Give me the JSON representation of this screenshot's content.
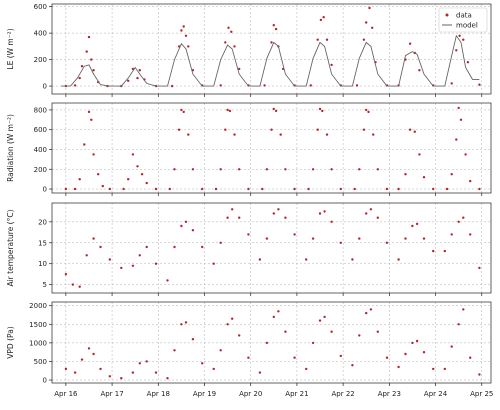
{
  "chart_data": [
    {
      "type": "scatter",
      "panel": "le",
      "ylabel": "LE (W m⁻²)",
      "ylim": [
        -60,
        620
      ],
      "yticks": [
        0,
        200,
        400,
        600
      ],
      "grid": true,
      "legend": {
        "placement": "top-right",
        "entries": [
          "data",
          "model"
        ]
      },
      "series": [
        {
          "name": "data",
          "style": "points",
          "color": "#b2262a",
          "x_days": [
            16.0,
            16.2,
            16.3,
            16.35,
            16.45,
            16.5,
            16.55,
            16.6,
            16.7,
            16.9,
            17.2,
            17.35,
            17.45,
            17.55,
            17.6,
            17.7,
            17.95,
            18.3,
            18.45,
            18.5,
            18.55,
            18.6,
            18.65,
            18.75,
            18.95,
            19.35,
            19.45,
            19.52,
            19.58,
            19.65,
            19.75,
            19.95,
            20.3,
            20.45,
            20.5,
            20.55,
            20.6,
            20.7,
            20.95,
            21.3,
            21.45,
            21.52,
            21.58,
            21.65,
            21.75,
            21.95,
            22.3,
            22.45,
            22.5,
            22.57,
            22.63,
            22.7,
            22.95,
            23.2,
            23.35,
            23.45,
            23.55,
            23.65,
            23.95,
            24.35,
            24.45,
            24.52,
            24.6,
            24.7,
            24.95
          ],
          "y": [
            0,
            5,
            60,
            150,
            260,
            370,
            200,
            120,
            30,
            0,
            0,
            40,
            130,
            60,
            120,
            50,
            0,
            0,
            300,
            420,
            450,
            380,
            300,
            120,
            5,
            5,
            330,
            440,
            410,
            300,
            130,
            5,
            5,
            330,
            460,
            430,
            300,
            130,
            5,
            5,
            350,
            500,
            520,
            350,
            160,
            5,
            5,
            350,
            480,
            590,
            440,
            180,
            5,
            5,
            200,
            320,
            250,
            120,
            5,
            20,
            270,
            380,
            350,
            180,
            10
          ]
        },
        {
          "name": "model",
          "style": "line",
          "color": "#666666",
          "x_days": [
            15.9,
            16.1,
            16.25,
            16.4,
            16.5,
            16.6,
            16.75,
            16.95,
            17.2,
            17.35,
            17.5,
            17.6,
            17.75,
            17.95,
            18.2,
            18.35,
            18.5,
            18.6,
            18.75,
            18.95,
            19.2,
            19.35,
            19.5,
            19.6,
            19.75,
            19.95,
            20.2,
            20.35,
            20.5,
            20.6,
            20.75,
            20.95,
            21.2,
            21.35,
            21.5,
            21.6,
            21.75,
            21.95,
            22.2,
            22.35,
            22.5,
            22.6,
            22.75,
            22.95,
            23.2,
            23.35,
            23.5,
            23.6,
            23.75,
            23.95,
            24.2,
            24.35,
            24.45,
            24.55,
            24.65,
            24.8,
            24.95
          ],
          "y": [
            0,
            0,
            60,
            150,
            160,
            90,
            10,
            0,
            0,
            60,
            140,
            90,
            20,
            0,
            0,
            200,
            320,
            280,
            90,
            0,
            0,
            200,
            310,
            280,
            90,
            0,
            0,
            210,
            330,
            300,
            90,
            0,
            0,
            210,
            330,
            300,
            90,
            0,
            0,
            210,
            330,
            300,
            90,
            0,
            0,
            230,
            260,
            240,
            90,
            0,
            0,
            230,
            380,
            330,
            140,
            50,
            50
          ]
        }
      ]
    },
    {
      "type": "scatter",
      "panel": "radiation",
      "ylabel": "Radiation (W m⁻²)",
      "ylim": [
        -40,
        870
      ],
      "yticks": [
        0,
        200,
        400,
        600,
        800
      ],
      "grid": true,
      "series": [
        {
          "name": "",
          "style": "points",
          "color": "#b2262a",
          "x_days": [
            16.0,
            16.2,
            16.3,
            16.4,
            16.5,
            16.55,
            16.6,
            16.7,
            16.8,
            16.95,
            17.25,
            17.35,
            17.45,
            17.55,
            17.65,
            17.75,
            17.95,
            18.25,
            18.35,
            18.45,
            18.5,
            18.55,
            18.65,
            18.75,
            18.95,
            19.25,
            19.35,
            19.45,
            19.5,
            19.55,
            19.65,
            19.75,
            19.95,
            20.25,
            20.35,
            20.45,
            20.5,
            20.55,
            20.65,
            20.75,
            20.95,
            21.25,
            21.35,
            21.45,
            21.5,
            21.55,
            21.65,
            21.75,
            21.95,
            22.25,
            22.35,
            22.45,
            22.5,
            22.55,
            22.65,
            22.75,
            22.95,
            23.2,
            23.35,
            23.45,
            23.55,
            23.65,
            23.75,
            23.95,
            24.25,
            24.35,
            24.45,
            24.5,
            24.55,
            24.65,
            24.75,
            24.95
          ],
          "y": [
            0,
            0,
            100,
            450,
            780,
            700,
            350,
            150,
            30,
            0,
            0,
            100,
            350,
            230,
            150,
            60,
            0,
            0,
            200,
            600,
            800,
            780,
            550,
            200,
            0,
            0,
            200,
            600,
            800,
            790,
            550,
            200,
            0,
            0,
            200,
            600,
            810,
            790,
            550,
            200,
            0,
            0,
            200,
            600,
            810,
            790,
            550,
            200,
            0,
            0,
            200,
            600,
            800,
            780,
            550,
            200,
            0,
            0,
            150,
            600,
            580,
            350,
            120,
            0,
            0,
            150,
            500,
            820,
            700,
            350,
            80,
            0
          ]
        }
      ]
    },
    {
      "type": "scatter",
      "panel": "air_temperature",
      "ylabel": "Air temperature (°C)",
      "ylim": [
        3,
        24.5
      ],
      "yticks": [
        5,
        10,
        15,
        20
      ],
      "grid": true,
      "series": [
        {
          "name": "",
          "style": "points",
          "color": "#b2262a",
          "x_days": [
            16.0,
            16.15,
            16.3,
            16.45,
            16.6,
            16.75,
            16.95,
            17.2,
            17.45,
            17.6,
            17.75,
            17.95,
            18.2,
            18.35,
            18.5,
            18.6,
            18.75,
            18.95,
            19.2,
            19.35,
            19.5,
            19.6,
            19.75,
            19.95,
            20.2,
            20.35,
            20.5,
            20.6,
            20.75,
            20.95,
            21.2,
            21.35,
            21.5,
            21.6,
            21.75,
            21.95,
            22.2,
            22.35,
            22.5,
            22.6,
            22.75,
            22.95,
            23.2,
            23.35,
            23.5,
            23.6,
            23.75,
            23.95,
            24.2,
            24.35,
            24.5,
            24.6,
            24.75,
            24.95
          ],
          "y": [
            7.5,
            5,
            4.5,
            12,
            16,
            14,
            11,
            9,
            9.5,
            12,
            14,
            10,
            6,
            14,
            19,
            20,
            18,
            14,
            10,
            15,
            21,
            23,
            21,
            17,
            11,
            16,
            22,
            23,
            21,
            17,
            11,
            16,
            22,
            22.5,
            20,
            15,
            11,
            16,
            22,
            23,
            21,
            15,
            11,
            16,
            19,
            19.5,
            16,
            13,
            13,
            17,
            20,
            21,
            17,
            9
          ]
        }
      ]
    },
    {
      "type": "scatter",
      "panel": "vpd",
      "ylabel": "VPD (Pa)",
      "ylim": [
        -80,
        2100
      ],
      "yticks": [
        0,
        500,
        1000,
        1500,
        2000
      ],
      "grid": true,
      "series": [
        {
          "name": "",
          "style": "points",
          "color": "#b2262a",
          "x_days": [
            16.0,
            16.2,
            16.35,
            16.5,
            16.6,
            16.75,
            16.95,
            17.2,
            17.45,
            17.6,
            17.75,
            17.95,
            18.2,
            18.35,
            18.5,
            18.6,
            18.75,
            18.95,
            19.2,
            19.35,
            19.5,
            19.6,
            19.75,
            19.95,
            20.2,
            20.35,
            20.5,
            20.6,
            20.75,
            20.95,
            21.2,
            21.35,
            21.5,
            21.6,
            21.75,
            21.95,
            22.2,
            22.35,
            22.5,
            22.6,
            22.75,
            22.95,
            23.2,
            23.35,
            23.5,
            23.6,
            23.75,
            23.95,
            24.2,
            24.35,
            24.5,
            24.6,
            24.75,
            24.95
          ],
          "y": [
            300,
            200,
            550,
            850,
            700,
            300,
            100,
            50,
            200,
            450,
            500,
            200,
            50,
            800,
            1500,
            1550,
            1100,
            450,
            300,
            800,
            1500,
            1650,
            1200,
            600,
            200,
            1000,
            1700,
            1850,
            1300,
            600,
            300,
            1000,
            1600,
            1700,
            1300,
            650,
            400,
            1200,
            1800,
            1900,
            1300,
            600,
            350,
            700,
            1000,
            1050,
            750,
            300,
            300,
            900,
            1500,
            1900,
            600,
            150
          ]
        }
      ]
    }
  ],
  "x_axis": {
    "xlim_days": [
      15.7,
      25.2
    ],
    "tick_days": [
      16,
      17,
      18,
      19,
      20,
      21,
      22,
      23,
      24,
      25
    ],
    "tick_labels": [
      "Apr 16",
      "Apr 17",
      "Apr 18",
      "Apr 19",
      "Apr 20",
      "Apr 21",
      "Apr 22",
      "Apr 23",
      "Apr 24",
      "Apr 25"
    ]
  }
}
